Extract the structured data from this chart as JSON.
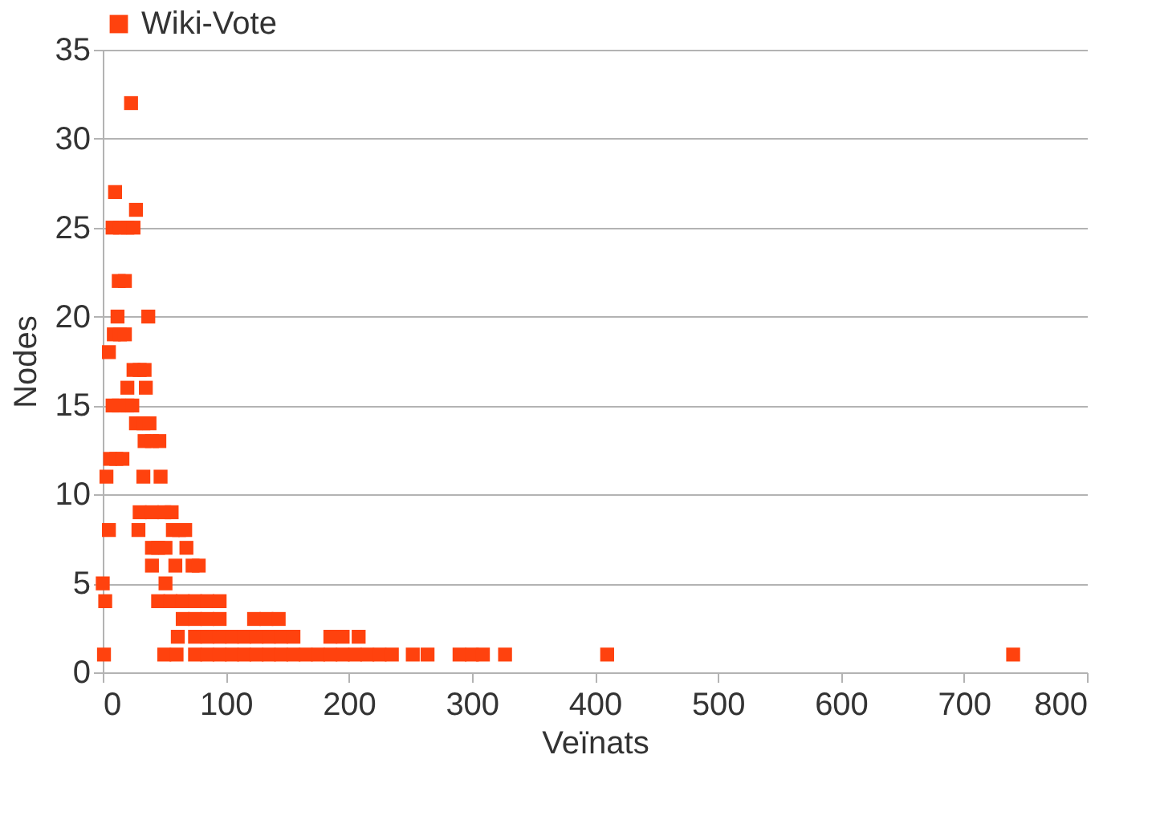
{
  "chart_data": {
    "type": "scatter",
    "xlabel": "Veïnats",
    "ylabel": "Nodes",
    "xlim": [
      0,
      800
    ],
    "xticks": [
      0,
      100,
      200,
      300,
      400,
      500,
      600,
      700,
      800
    ],
    "ylim": [
      0,
      35
    ],
    "yticks": [
      0,
      5,
      10,
      15,
      20,
      25,
      30,
      35
    ],
    "grid": "y",
    "legend": "top",
    "marker": "square",
    "series": [
      {
        "name": "Wiki-Vote",
        "color": "#ff420e",
        "x": [
          23,
          10,
          27,
          8,
          14,
          20,
          25,
          13,
          18,
          12,
          37,
          9,
          14,
          18,
          5,
          25,
          30,
          34,
          20,
          35,
          8,
          13,
          20,
          24,
          27,
          33,
          38,
          34,
          40,
          46,
          6,
          11,
          16,
          3,
          33,
          47,
          30,
          40,
          50,
          56,
          5,
          29,
          57,
          62,
          67,
          40,
          45,
          51,
          68,
          40,
          59,
          73,
          78,
          0,
          51,
          2,
          45,
          55,
          65,
          75,
          85,
          95,
          65,
          75,
          85,
          95,
          123,
          133,
          143,
          61,
          75,
          85,
          95,
          105,
          115,
          125,
          135,
          145,
          155,
          185,
          195,
          208,
          1,
          50,
          60,
          75,
          85,
          95,
          105,
          115,
          125,
          135,
          145,
          155,
          165,
          175,
          185,
          195,
          205,
          215,
          225,
          235,
          252,
          264,
          290,
          300,
          309,
          327,
          410,
          740
        ],
        "values": [
          32,
          27,
          26,
          25,
          25,
          25,
          25,
          22,
          22,
          20,
          20,
          19,
          19,
          19,
          18,
          17,
          17,
          17,
          16,
          16,
          15,
          15,
          15,
          15,
          14,
          14,
          14,
          13,
          13,
          13,
          12,
          12,
          12,
          11,
          11,
          11,
          9,
          9,
          9,
          9,
          8,
          8,
          8,
          8,
          8,
          7,
          7,
          7,
          7,
          6,
          6,
          6,
          6,
          5,
          5,
          4,
          4,
          4,
          4,
          4,
          4,
          4,
          3,
          3,
          3,
          3,
          3,
          3,
          3,
          2,
          2,
          2,
          2,
          2,
          2,
          2,
          2,
          2,
          2,
          2,
          2,
          2,
          1,
          1,
          1,
          1,
          1,
          1,
          1,
          1,
          1,
          1,
          1,
          1,
          1,
          1,
          1,
          1,
          1,
          1,
          1,
          1,
          1,
          1,
          1,
          1,
          1,
          1,
          1,
          1
        ]
      }
    ]
  }
}
